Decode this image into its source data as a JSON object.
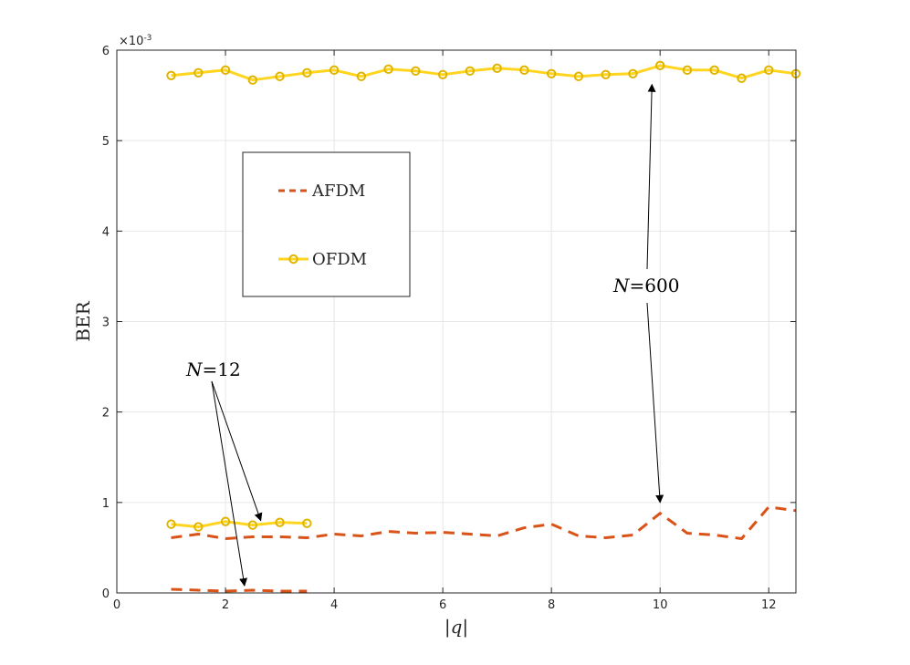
{
  "colors": {
    "afdm": "#D95319",
    "ofdm": "#FFD51F",
    "ofdm_edge": "#E0B400",
    "grid": "#e6e6e6",
    "axis": "#262626"
  },
  "chart_data": {
    "type": "line",
    "xlabel": "|q|",
    "ylabel": "BER",
    "exponent_label": "×10-3",
    "exponent_base": "×10",
    "exponent_power": "-3",
    "xlim": [
      0,
      12.5
    ],
    "ylim": [
      0,
      6
    ],
    "grid": true,
    "xticks": [
      "0",
      "2",
      "4",
      "6",
      "8",
      "10",
      "12"
    ],
    "yticks": [
      "0",
      "1",
      "2",
      "3",
      "4",
      "5",
      "6"
    ],
    "legend": {
      "placement": "upper-left",
      "entries": [
        "AFDM",
        "OFDM"
      ]
    },
    "series": [
      {
        "name": "OFDM",
        "group": "N=600",
        "style": "solid-circle",
        "x": [
          1,
          1.5,
          2,
          2.5,
          3,
          3.5,
          4,
          4.5,
          5,
          5.5,
          6,
          6.5,
          7,
          7.5,
          8,
          8.5,
          9,
          9.5,
          10,
          10.5,
          11,
          11.5,
          12,
          12.5
        ],
        "values": [
          5.72,
          5.75,
          5.78,
          5.67,
          5.71,
          5.75,
          5.78,
          5.71,
          5.79,
          5.77,
          5.73,
          5.77,
          5.8,
          5.78,
          5.74,
          5.71,
          5.73,
          5.74,
          5.83,
          5.78,
          5.78,
          5.69,
          5.78,
          5.74
        ]
      },
      {
        "name": "AFDM",
        "group": "N=600",
        "style": "dashed",
        "x": [
          1,
          1.5,
          2,
          2.5,
          3,
          3.5,
          4,
          4.5,
          5,
          5.5,
          6,
          6.5,
          7,
          7.5,
          8,
          8.5,
          9,
          9.5,
          10,
          10.5,
          11,
          11.5,
          12,
          12.5
        ],
        "values": [
          0.61,
          0.65,
          0.6,
          0.62,
          0.62,
          0.61,
          0.65,
          0.63,
          0.68,
          0.66,
          0.67,
          0.65,
          0.63,
          0.72,
          0.76,
          0.63,
          0.61,
          0.64,
          0.88,
          0.66,
          0.64,
          0.6,
          0.95,
          0.91
        ]
      },
      {
        "name": "OFDM",
        "group": "N=12",
        "style": "solid-circle",
        "x": [
          1,
          1.5,
          2,
          2.5,
          3,
          3.5
        ],
        "values": [
          0.76,
          0.73,
          0.79,
          0.75,
          0.78,
          0.77
        ]
      },
      {
        "name": "AFDM",
        "group": "N=12",
        "style": "dashed",
        "x": [
          1,
          1.5,
          2,
          2.5,
          3,
          3.5
        ],
        "values": [
          0.04,
          0.03,
          0.02,
          0.03,
          0.02,
          0.02
        ]
      }
    ],
    "annotations": [
      {
        "name": "N=600",
        "var": "N",
        "rest": "=600",
        "targets": [
          {
            "x": 9.85,
            "y": 5.62
          },
          {
            "x": 10.0,
            "y": 1.0
          }
        ]
      },
      {
        "name": "N=12",
        "var": "N",
        "rest": "=12",
        "targets": [
          {
            "x": 2.65,
            "y": 0.8
          },
          {
            "x": 2.35,
            "y": 0.08
          }
        ]
      }
    ]
  }
}
